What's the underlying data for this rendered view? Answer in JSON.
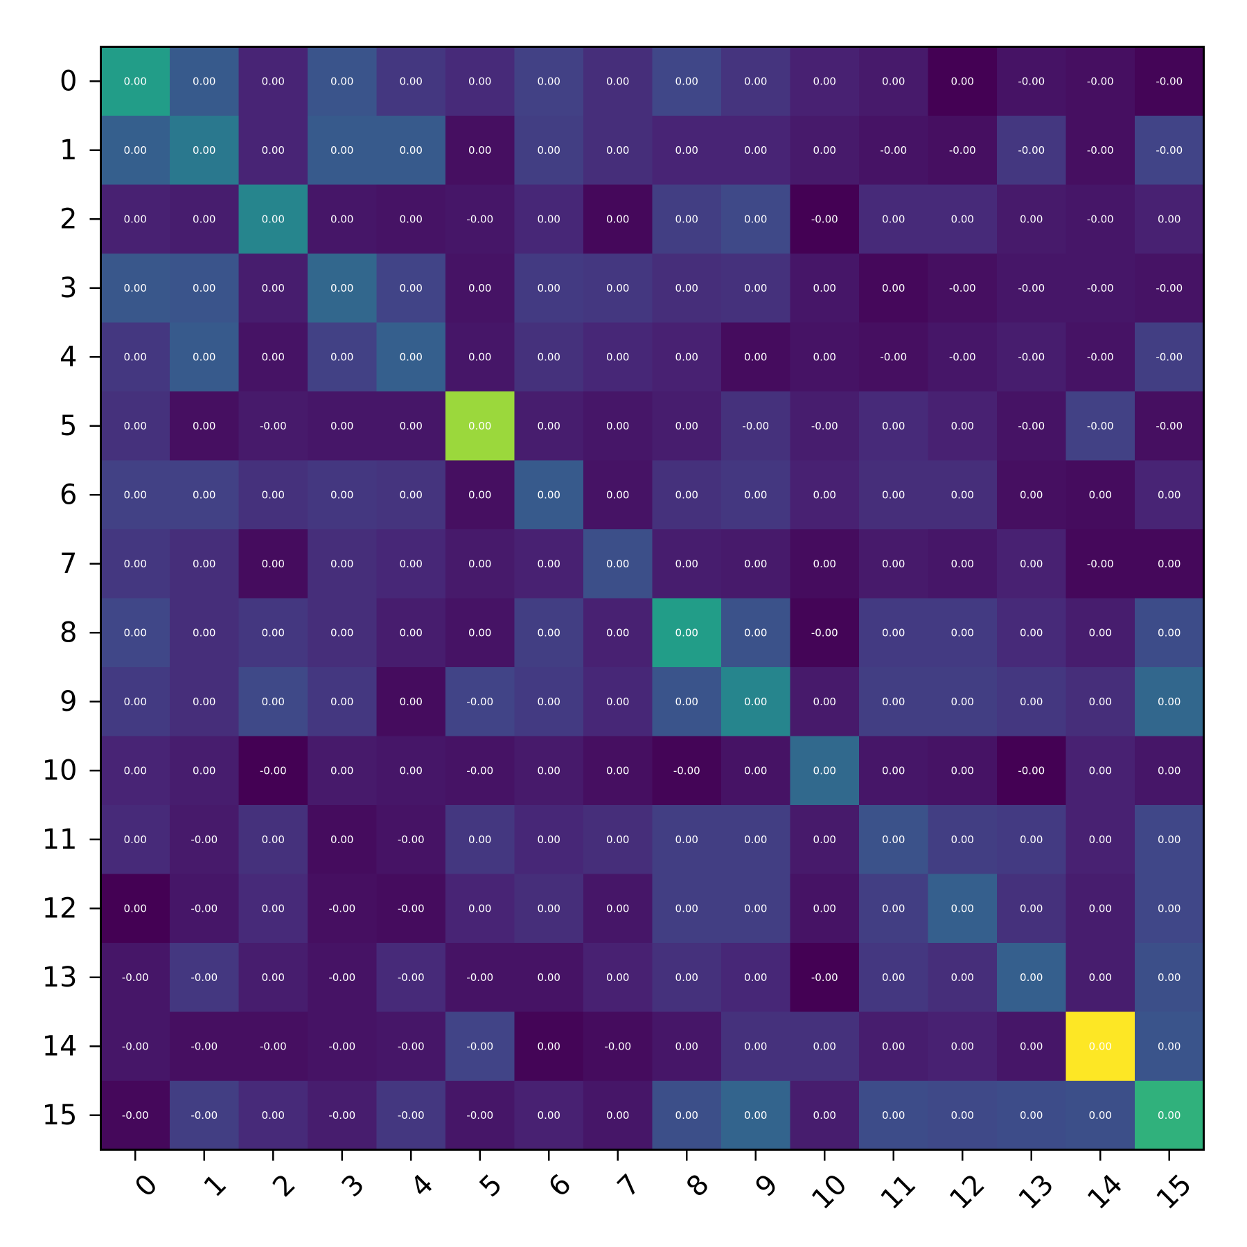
{
  "chart_data": {
    "type": "heatmap",
    "colormap": "viridis",
    "x_tick_labels": [
      "0",
      "1",
      "2",
      "3",
      "4",
      "5",
      "6",
      "7",
      "8",
      "9",
      "10",
      "11",
      "12",
      "13",
      "14",
      "15"
    ],
    "y_tick_labels": [
      "0",
      "1",
      "2",
      "3",
      "4",
      "5",
      "6",
      "7",
      "8",
      "9",
      "10",
      "11",
      "12",
      "13",
      "14",
      "15"
    ],
    "x_tick_rotation": "45 degrees",
    "colorbar": false,
    "color_intensity": [
      [
        0.55,
        0.28,
        0.1,
        0.26,
        0.16,
        0.12,
        0.19,
        0.13,
        0.21,
        0.15,
        0.09,
        0.07,
        0.0,
        0.05,
        0.04,
        0.01
      ],
      [
        0.3,
        0.4,
        0.1,
        0.28,
        0.28,
        0.04,
        0.18,
        0.13,
        0.1,
        0.1,
        0.07,
        0.05,
        0.04,
        0.16,
        0.04,
        0.2
      ],
      [
        0.09,
        0.08,
        0.45,
        0.06,
        0.05,
        0.06,
        0.11,
        0.02,
        0.18,
        0.22,
        0.0,
        0.12,
        0.12,
        0.07,
        0.06,
        0.09
      ],
      [
        0.27,
        0.26,
        0.08,
        0.33,
        0.2,
        0.05,
        0.17,
        0.16,
        0.13,
        0.14,
        0.06,
        0.02,
        0.04,
        0.06,
        0.06,
        0.05
      ],
      [
        0.16,
        0.28,
        0.05,
        0.19,
        0.3,
        0.06,
        0.14,
        0.11,
        0.09,
        0.03,
        0.05,
        0.04,
        0.06,
        0.08,
        0.05,
        0.18
      ],
      [
        0.14,
        0.04,
        0.07,
        0.06,
        0.06,
        0.85,
        0.08,
        0.06,
        0.08,
        0.14,
        0.08,
        0.12,
        0.09,
        0.05,
        0.19,
        0.04
      ],
      [
        0.19,
        0.19,
        0.14,
        0.16,
        0.15,
        0.04,
        0.28,
        0.05,
        0.14,
        0.16,
        0.09,
        0.13,
        0.13,
        0.04,
        0.03,
        0.1
      ],
      [
        0.16,
        0.13,
        0.03,
        0.13,
        0.11,
        0.07,
        0.09,
        0.24,
        0.08,
        0.07,
        0.03,
        0.07,
        0.06,
        0.09,
        0.02,
        0.02
      ],
      [
        0.21,
        0.13,
        0.16,
        0.13,
        0.08,
        0.05,
        0.18,
        0.09,
        0.55,
        0.25,
        0.01,
        0.17,
        0.17,
        0.12,
        0.08,
        0.23
      ],
      [
        0.17,
        0.13,
        0.22,
        0.16,
        0.03,
        0.2,
        0.17,
        0.11,
        0.26,
        0.45,
        0.07,
        0.18,
        0.18,
        0.16,
        0.13,
        0.33
      ],
      [
        0.1,
        0.08,
        0.0,
        0.07,
        0.06,
        0.05,
        0.07,
        0.04,
        0.01,
        0.05,
        0.34,
        0.06,
        0.05,
        0.0,
        0.09,
        0.06
      ],
      [
        0.12,
        0.07,
        0.14,
        0.03,
        0.05,
        0.16,
        0.11,
        0.13,
        0.18,
        0.18,
        0.07,
        0.25,
        0.18,
        0.17,
        0.09,
        0.21
      ],
      [
        0.0,
        0.06,
        0.12,
        0.04,
        0.03,
        0.1,
        0.13,
        0.06,
        0.18,
        0.18,
        0.05,
        0.18,
        0.3,
        0.14,
        0.08,
        0.21
      ],
      [
        0.06,
        0.16,
        0.08,
        0.05,
        0.12,
        0.05,
        0.05,
        0.09,
        0.14,
        0.11,
        0.0,
        0.16,
        0.13,
        0.3,
        0.08,
        0.24
      ],
      [
        0.06,
        0.04,
        0.04,
        0.05,
        0.06,
        0.2,
        0.01,
        0.03,
        0.06,
        0.14,
        0.14,
        0.08,
        0.09,
        0.06,
        1.0,
        0.26
      ],
      [
        0.02,
        0.18,
        0.12,
        0.08,
        0.16,
        0.06,
        0.09,
        0.06,
        0.24,
        0.32,
        0.08,
        0.23,
        0.22,
        0.23,
        0.24,
        0.64
      ]
    ],
    "cell_labels": [
      [
        "0.00",
        "0.00",
        "0.00",
        "0.00",
        "0.00",
        "0.00",
        "0.00",
        "0.00",
        "0.00",
        "0.00",
        "0.00",
        "0.00",
        "0.00",
        "-0.00",
        "-0.00",
        "-0.00"
      ],
      [
        "0.00",
        "0.00",
        "0.00",
        "0.00",
        "0.00",
        "0.00",
        "0.00",
        "0.00",
        "0.00",
        "0.00",
        "0.00",
        "-0.00",
        "-0.00",
        "-0.00",
        "-0.00",
        "-0.00"
      ],
      [
        "0.00",
        "0.00",
        "0.00",
        "0.00",
        "0.00",
        "-0.00",
        "0.00",
        "0.00",
        "0.00",
        "0.00",
        "-0.00",
        "0.00",
        "0.00",
        "0.00",
        "-0.00",
        "0.00"
      ],
      [
        "0.00",
        "0.00",
        "0.00",
        "0.00",
        "0.00",
        "0.00",
        "0.00",
        "0.00",
        "0.00",
        "0.00",
        "0.00",
        "0.00",
        "-0.00",
        "-0.00",
        "-0.00",
        "-0.00"
      ],
      [
        "0.00",
        "0.00",
        "0.00",
        "0.00",
        "0.00",
        "0.00",
        "0.00",
        "0.00",
        "0.00",
        "0.00",
        "0.00",
        "-0.00",
        "-0.00",
        "-0.00",
        "-0.00",
        "-0.00"
      ],
      [
        "0.00",
        "0.00",
        "-0.00",
        "0.00",
        "0.00",
        "0.00",
        "0.00",
        "0.00",
        "0.00",
        "-0.00",
        "-0.00",
        "0.00",
        "0.00",
        "-0.00",
        "-0.00",
        "-0.00"
      ],
      [
        "0.00",
        "0.00",
        "0.00",
        "0.00",
        "0.00",
        "0.00",
        "0.00",
        "0.00",
        "0.00",
        "0.00",
        "0.00",
        "0.00",
        "0.00",
        "0.00",
        "0.00",
        "0.00"
      ],
      [
        "0.00",
        "0.00",
        "0.00",
        "0.00",
        "0.00",
        "0.00",
        "0.00",
        "0.00",
        "0.00",
        "0.00",
        "0.00",
        "0.00",
        "0.00",
        "0.00",
        "-0.00",
        "0.00"
      ],
      [
        "0.00",
        "0.00",
        "0.00",
        "0.00",
        "0.00",
        "0.00",
        "0.00",
        "0.00",
        "0.00",
        "0.00",
        "-0.00",
        "0.00",
        "0.00",
        "0.00",
        "0.00",
        "0.00"
      ],
      [
        "0.00",
        "0.00",
        "0.00",
        "0.00",
        "0.00",
        "-0.00",
        "0.00",
        "0.00",
        "0.00",
        "0.00",
        "0.00",
        "0.00",
        "0.00",
        "0.00",
        "0.00",
        "0.00"
      ],
      [
        "0.00",
        "0.00",
        "-0.00",
        "0.00",
        "0.00",
        "-0.00",
        "0.00",
        "0.00",
        "-0.00",
        "0.00",
        "0.00",
        "0.00",
        "0.00",
        "-0.00",
        "0.00",
        "0.00"
      ],
      [
        "0.00",
        "-0.00",
        "0.00",
        "0.00",
        "-0.00",
        "0.00",
        "0.00",
        "0.00",
        "0.00",
        "0.00",
        "0.00",
        "0.00",
        "0.00",
        "0.00",
        "0.00",
        "0.00"
      ],
      [
        "0.00",
        "-0.00",
        "0.00",
        "-0.00",
        "-0.00",
        "0.00",
        "0.00",
        "0.00",
        "0.00",
        "0.00",
        "0.00",
        "0.00",
        "0.00",
        "0.00",
        "0.00",
        "0.00"
      ],
      [
        "-0.00",
        "-0.00",
        "0.00",
        "-0.00",
        "-0.00",
        "-0.00",
        "0.00",
        "0.00",
        "0.00",
        "0.00",
        "-0.00",
        "0.00",
        "0.00",
        "0.00",
        "0.00",
        "0.00"
      ],
      [
        "-0.00",
        "-0.00",
        "-0.00",
        "-0.00",
        "-0.00",
        "-0.00",
        "0.00",
        "-0.00",
        "0.00",
        "0.00",
        "0.00",
        "0.00",
        "0.00",
        "0.00",
        "0.00",
        "0.00"
      ],
      [
        "-0.00",
        "-0.00",
        "0.00",
        "-0.00",
        "-0.00",
        "-0.00",
        "0.00",
        "0.00",
        "0.00",
        "0.00",
        "0.00",
        "0.00",
        "0.00",
        "0.00",
        "0.00",
        "0.00"
      ]
    ]
  }
}
